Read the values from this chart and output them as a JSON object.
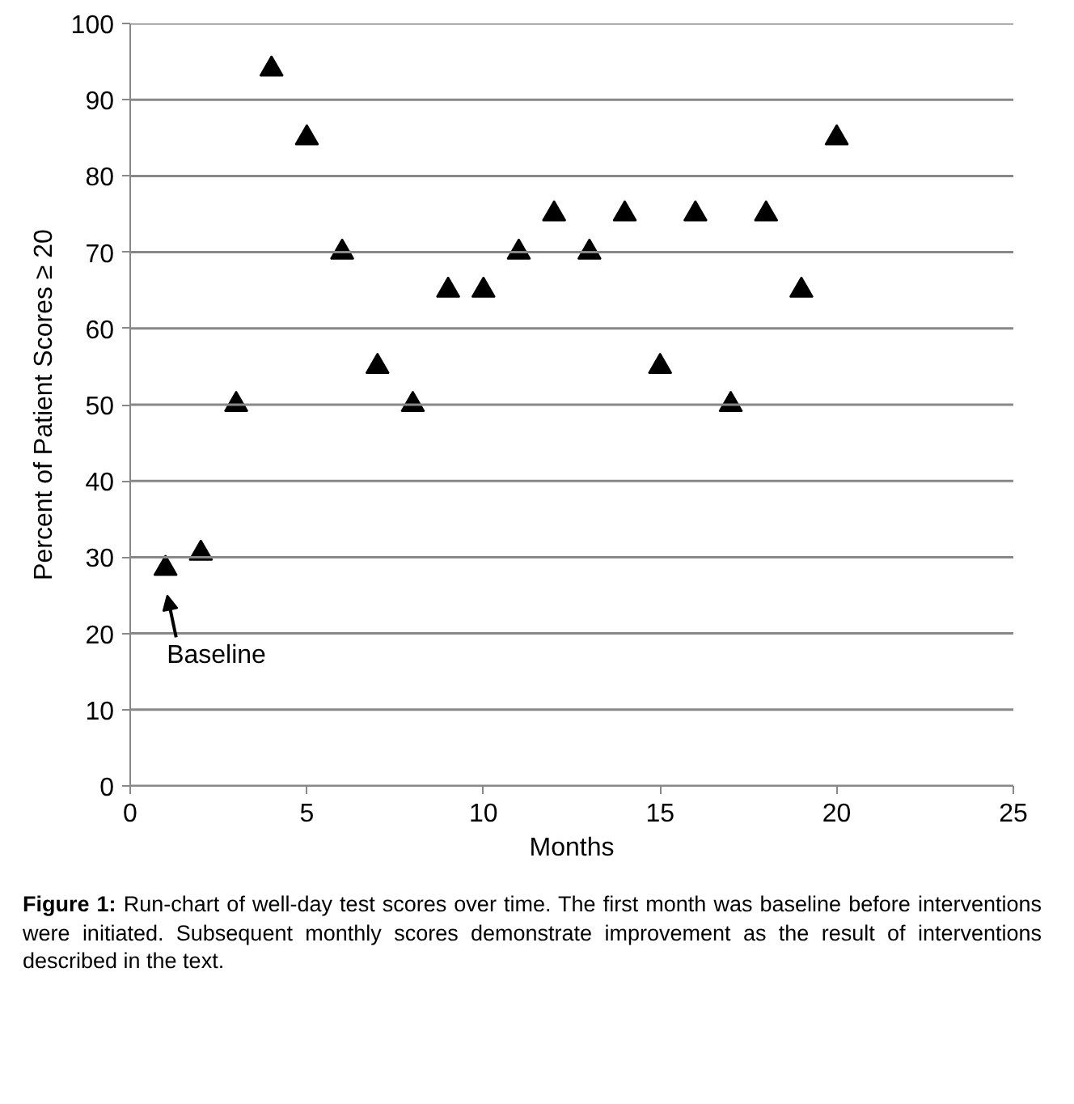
{
  "chart_data": {
    "type": "scatter",
    "xlabel": "Months",
    "ylabel": "Percent of Patient Scores ≥ 20",
    "x": [
      1,
      2,
      3,
      4,
      5,
      6,
      7,
      8,
      9,
      10,
      11,
      12,
      13,
      14,
      15,
      16,
      17,
      18,
      19,
      20
    ],
    "series": [
      {
        "color": "#000000",
        "values": [
          28.5,
          30.5,
          50,
          94,
          85,
          70,
          55,
          50,
          65,
          65,
          70,
          75,
          70,
          75,
          55,
          75,
          50,
          75,
          65,
          85
        ]
      }
    ],
    "marker": "triangle",
    "grid": "y",
    "xlim": [
      0,
      25
    ],
    "xticks": [
      0,
      5,
      10,
      15,
      20,
      25
    ],
    "ylim": [
      0,
      100
    ],
    "yticks": [
      0,
      10,
      20,
      30,
      40,
      50,
      60,
      70,
      80,
      90,
      100
    ],
    "annotations": [
      {
        "text": "Baseline",
        "x": 1,
        "y": 28.5
      },
      "Figure 1: Run-chart of well-day test scores over time. The first month was baseline before interventions were initiated. Subsequent monthly scores demonstrate improvement as the result of interventions described in the text."
    ]
  }
}
